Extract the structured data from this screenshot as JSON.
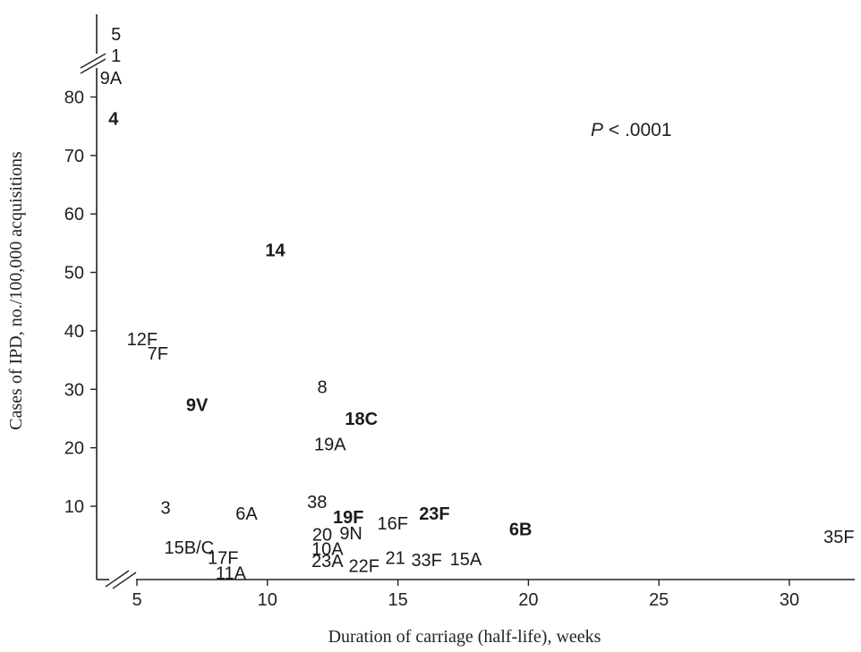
{
  "chart_data": {
    "type": "scatter",
    "xlabel": "Duration of carriage (half-life), weeks",
    "ylabel": "Cases of IPD, no./100,000 acquisitions",
    "xlim": [
      3.5,
      32.5
    ],
    "ylim": [
      -3,
      85
    ],
    "x_ticks": [
      5,
      10,
      15,
      20,
      25,
      30
    ],
    "y_ticks": [
      10,
      20,
      30,
      40,
      50,
      60,
      70,
      80
    ],
    "axis_breaks": [
      "y-top",
      "origin"
    ],
    "grid": false,
    "annotation": {
      "italic": "P",
      "rest": " < .0001"
    },
    "points": [
      {
        "label": "5",
        "x": 4.2,
        "y": 94.2,
        "bold": false,
        "above_break": true
      },
      {
        "label": "1",
        "x": 4.2,
        "y": 90.8,
        "bold": false,
        "above_break": true
      },
      {
        "label": "9A",
        "x": 4.0,
        "y": 87.2,
        "bold": false,
        "above_break": true
      },
      {
        "label": "4",
        "x": 4.1,
        "y": 76.3,
        "bold": true
      },
      {
        "label": "14",
        "x": 10.3,
        "y": 53.8,
        "bold": true
      },
      {
        "label": "12F",
        "x": 5.2,
        "y": 38.6,
        "bold": false
      },
      {
        "label": "7F",
        "x": 5.8,
        "y": 36.2,
        "bold": false
      },
      {
        "label": "8",
        "x": 12.1,
        "y": 30.4,
        "bold": false
      },
      {
        "label": "9V",
        "x": 7.3,
        "y": 27.4,
        "bold": true
      },
      {
        "label": "18C",
        "x": 13.6,
        "y": 25.0,
        "bold": true
      },
      {
        "label": "19A",
        "x": 12.4,
        "y": 20.6,
        "bold": false
      },
      {
        "label": "38",
        "x": 11.9,
        "y": 10.8,
        "bold": false
      },
      {
        "label": "3",
        "x": 6.1,
        "y": 9.8,
        "bold": false
      },
      {
        "label": "6A",
        "x": 9.2,
        "y": 8.8,
        "bold": false
      },
      {
        "label": "19F",
        "x": 13.1,
        "y": 8.2,
        "bold": true
      },
      {
        "label": "23F",
        "x": 16.4,
        "y": 8.8,
        "bold": true
      },
      {
        "label": "16F",
        "x": 14.8,
        "y": 7.1,
        "bold": false
      },
      {
        "label": "9N",
        "x": 13.2,
        "y": 5.4,
        "bold": false
      },
      {
        "label": "20",
        "x": 12.1,
        "y": 5.2,
        "bold": false
      },
      {
        "label": "6B",
        "x": 19.7,
        "y": 6.1,
        "bold": true
      },
      {
        "label": "35F",
        "x": 31.9,
        "y": 4.8,
        "bold": false
      },
      {
        "label": "15B/C",
        "x": 7.0,
        "y": 3.0,
        "bold": false
      },
      {
        "label": "10A",
        "x": 12.3,
        "y": 2.7,
        "bold": false
      },
      {
        "label": "17F",
        "x": 8.3,
        "y": 1.2,
        "bold": false
      },
      {
        "label": "21",
        "x": 14.9,
        "y": 1.2,
        "bold": false
      },
      {
        "label": "33F",
        "x": 16.1,
        "y": 0.8,
        "bold": false
      },
      {
        "label": "15A",
        "x": 17.6,
        "y": 1.0,
        "bold": false
      },
      {
        "label": "23A",
        "x": 12.3,
        "y": 0.7,
        "bold": false
      },
      {
        "label": "22F",
        "x": 13.7,
        "y": -0.2,
        "bold": false
      },
      {
        "label": "11A",
        "x": 8.6,
        "y": -1.4,
        "bold": false
      }
    ]
  }
}
